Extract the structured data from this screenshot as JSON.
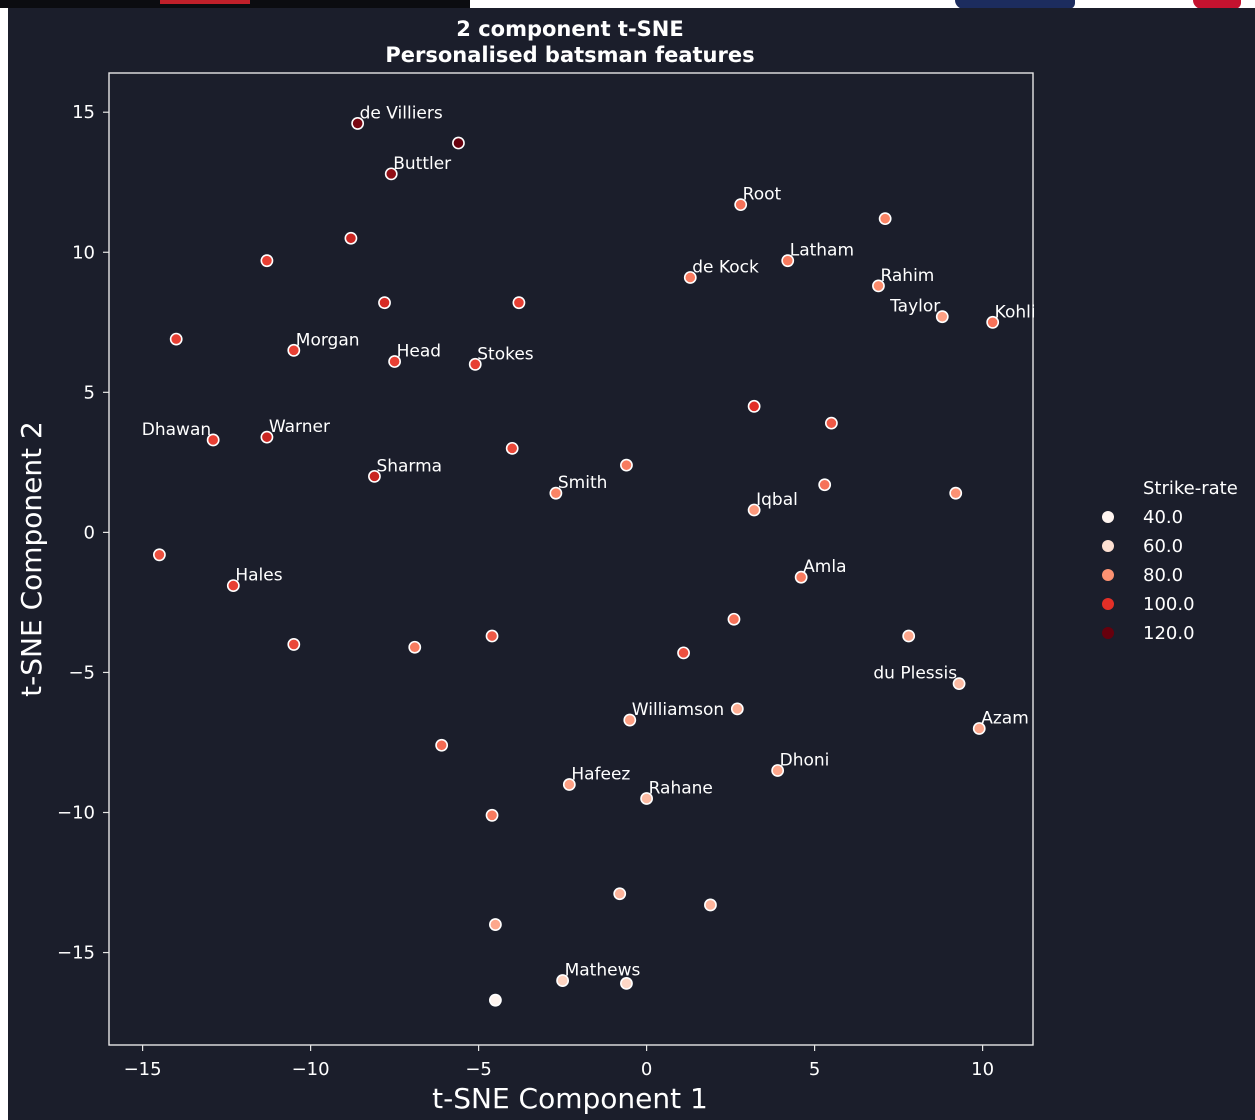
{
  "chart_data": {
    "type": "scatter",
    "title": "2 component t-SNE",
    "subtitle": "Personalised batsman features",
    "xlabel": "t-SNE Component 1",
    "ylabel": "t-SNE Component 2",
    "xlim": [
      -16,
      11.5
    ],
    "ylim": [
      -18.3,
      16.4
    ],
    "xticks": [
      -15,
      -10,
      -5,
      0,
      5,
      10
    ],
    "xtick_labels": [
      "−15",
      "−10",
      "−5",
      "0",
      "5",
      "10"
    ],
    "yticks": [
      15,
      10,
      5,
      0,
      -5,
      -10,
      -15
    ],
    "ytick_labels": [
      "15",
      "10",
      "5",
      "0",
      "−5",
      "−10",
      "−15"
    ],
    "grid": false,
    "legend": {
      "title": "Strike-rate",
      "placement": "right",
      "entries": [
        {
          "label": "40.0",
          "color": "#fff5f0"
        },
        {
          "label": "60.0",
          "color": "#fee0d2"
        },
        {
          "label": "80.0",
          "color": "#fc9272"
        },
        {
          "label": "100.0",
          "color": "#e32f27"
        },
        {
          "label": "120.0",
          "color": "#67000d"
        }
      ]
    },
    "points": [
      {
        "x": -8.6,
        "y": 14.6,
        "sr": 122,
        "label": "de Villiers"
      },
      {
        "x": -7.6,
        "y": 12.8,
        "sr": 118,
        "label": "Buttler"
      },
      {
        "x": -5.6,
        "y": 13.9,
        "sr": 125,
        "label": ""
      },
      {
        "x": -8.8,
        "y": 10.5,
        "sr": 108,
        "label": ""
      },
      {
        "x": -11.3,
        "y": 9.7,
        "sr": 100,
        "label": ""
      },
      {
        "x": -7.8,
        "y": 8.2,
        "sr": 106,
        "label": ""
      },
      {
        "x": -3.8,
        "y": 8.2,
        "sr": 100,
        "label": ""
      },
      {
        "x": -14.0,
        "y": 6.9,
        "sr": 100,
        "label": ""
      },
      {
        "x": -10.5,
        "y": 6.5,
        "sr": 100,
        "label": "Morgan"
      },
      {
        "x": -7.5,
        "y": 6.1,
        "sr": 100,
        "label": "Head"
      },
      {
        "x": -5.1,
        "y": 6.0,
        "sr": 100,
        "label": "Stokes"
      },
      {
        "x": -12.9,
        "y": 3.3,
        "sr": 100,
        "label": "Dhawan"
      },
      {
        "x": -11.3,
        "y": 3.4,
        "sr": 108,
        "label": "Warner"
      },
      {
        "x": -8.1,
        "y": 2.0,
        "sr": 108,
        "label": "Sharma"
      },
      {
        "x": -4.0,
        "y": 3.0,
        "sr": 98,
        "label": ""
      },
      {
        "x": -14.5,
        "y": -0.8,
        "sr": 96,
        "label": ""
      },
      {
        "x": -12.3,
        "y": -1.9,
        "sr": 100,
        "label": "Hales"
      },
      {
        "x": -10.5,
        "y": -4.0,
        "sr": 98,
        "label": ""
      },
      {
        "x": -6.9,
        "y": -4.1,
        "sr": 86,
        "label": ""
      },
      {
        "x": -4.6,
        "y": -3.7,
        "sr": 94,
        "label": ""
      },
      {
        "x": -2.7,
        "y": 1.4,
        "sr": 84,
        "label": "Smith"
      },
      {
        "x": -0.6,
        "y": 2.4,
        "sr": 86,
        "label": ""
      },
      {
        "x": 1.3,
        "y": 9.1,
        "sr": 86,
        "label": "de Kock"
      },
      {
        "x": 2.8,
        "y": 11.7,
        "sr": 88,
        "label": "Root"
      },
      {
        "x": 4.2,
        "y": 9.7,
        "sr": 86,
        "label": "Latham"
      },
      {
        "x": 7.1,
        "y": 11.2,
        "sr": 84,
        "label": ""
      },
      {
        "x": 6.9,
        "y": 8.8,
        "sr": 82,
        "label": "Rahim"
      },
      {
        "x": 8.8,
        "y": 7.7,
        "sr": 76,
        "label": "Taylor"
      },
      {
        "x": 10.3,
        "y": 7.5,
        "sr": 88,
        "label": "Kohli"
      },
      {
        "x": 3.2,
        "y": 4.5,
        "sr": 104,
        "label": ""
      },
      {
        "x": 5.5,
        "y": 3.9,
        "sr": 94,
        "label": ""
      },
      {
        "x": 3.2,
        "y": 0.8,
        "sr": 78,
        "label": "Iqbal"
      },
      {
        "x": 5.3,
        "y": 1.7,
        "sr": 88,
        "label": ""
      },
      {
        "x": 9.2,
        "y": 1.4,
        "sr": 80,
        "label": ""
      },
      {
        "x": 4.6,
        "y": -1.6,
        "sr": 86,
        "label": "Amla"
      },
      {
        "x": 2.6,
        "y": -3.1,
        "sr": 88,
        "label": ""
      },
      {
        "x": 1.1,
        "y": -4.3,
        "sr": 96,
        "label": ""
      },
      {
        "x": 7.8,
        "y": -3.7,
        "sr": 74,
        "label": ""
      },
      {
        "x": 9.3,
        "y": -5.4,
        "sr": 68,
        "label": "du Plessis"
      },
      {
        "x": -0.5,
        "y": -6.7,
        "sr": 76,
        "label": "Williamson"
      },
      {
        "x": 2.7,
        "y": -6.3,
        "sr": 72,
        "label": ""
      },
      {
        "x": 9.9,
        "y": -7.0,
        "sr": 74,
        "label": "Azam"
      },
      {
        "x": -6.1,
        "y": -7.6,
        "sr": 90,
        "label": ""
      },
      {
        "x": 3.9,
        "y": -8.5,
        "sr": 74,
        "label": "Dhoni"
      },
      {
        "x": -2.3,
        "y": -9.0,
        "sr": 76,
        "label": "Hafeez"
      },
      {
        "x": 0.0,
        "y": -9.5,
        "sr": 68,
        "label": "Rahane"
      },
      {
        "x": -4.6,
        "y": -10.1,
        "sr": 86,
        "label": ""
      },
      {
        "x": -0.8,
        "y": -12.9,
        "sr": 70,
        "label": ""
      },
      {
        "x": 1.9,
        "y": -13.3,
        "sr": 70,
        "label": ""
      },
      {
        "x": -4.5,
        "y": -14.0,
        "sr": 74,
        "label": ""
      },
      {
        "x": -2.5,
        "y": -16.0,
        "sr": 60,
        "label": "Mathews"
      },
      {
        "x": -0.6,
        "y": -16.1,
        "sr": 58,
        "label": ""
      },
      {
        "x": -4.5,
        "y": -16.7,
        "sr": 40,
        "label": ""
      }
    ]
  }
}
